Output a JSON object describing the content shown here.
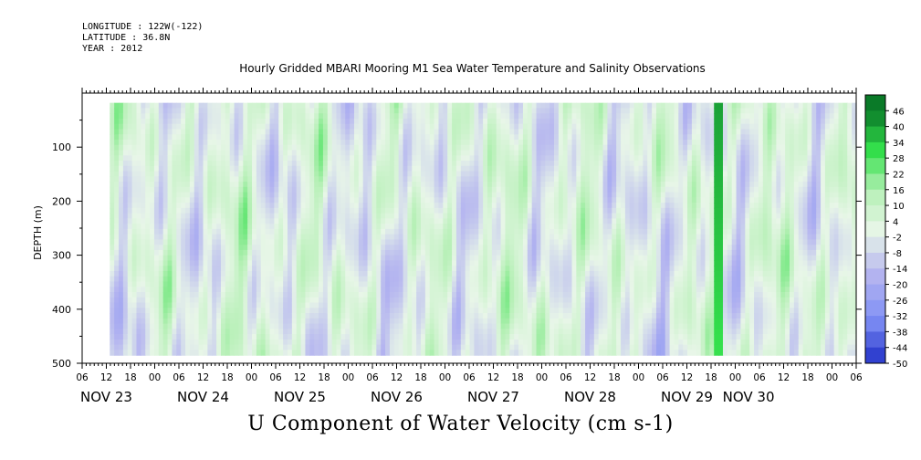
{
  "meta": {
    "longitude": "LONGITUDE : 122W(-122)",
    "latitude": "LATITUDE : 36.8N",
    "year": "YEAR : 2012"
  },
  "chart_data": {
    "type": "heatmap",
    "title": "Hourly Gridded MBARI Mooring M1 Sea Water Temperature and Salinity Observations",
    "variable_label": "U Component of Water Velocity (cm s-1)",
    "ylabel": "DEPTH (m)",
    "xlabel": "",
    "y_axis": {
      "ticks": [
        100,
        200,
        300,
        400,
        500
      ],
      "range": [
        500,
        0
      ],
      "inverted": true
    },
    "x_axis": {
      "hour_ticks": [
        "06",
        "12",
        "18",
        "00",
        "06",
        "12",
        "18",
        "00",
        "06",
        "12",
        "18",
        "00",
        "06",
        "12",
        "18",
        "00",
        "06",
        "12",
        "18",
        "00",
        "06",
        "12",
        "18",
        "00",
        "06",
        "12",
        "18",
        "00",
        "06",
        "12",
        "18",
        "00",
        "06"
      ],
      "day_labels": [
        "NOV 23",
        "NOV 24",
        "NOV 25",
        "NOV 26",
        "NOV 27",
        "NOV 28",
        "NOV 29",
        "NOV 30"
      ],
      "range": [
        "2012-11-23T06:00",
        "2012-11-30T06:00"
      ]
    },
    "colorbar": {
      "ticks": [
        46,
        40,
        34,
        28,
        22,
        16,
        10,
        4,
        -2,
        -8,
        -14,
        -20,
        -26,
        -32,
        -38,
        -44,
        -50
      ],
      "range": [
        -50,
        52
      ],
      "step": 6
    },
    "data_range": {
      "time_start": "2012-11-23T12:00",
      "time_end": "2012-11-30T06:00",
      "depth_min": 18,
      "depth_max": 485
    },
    "colors": {
      "positive_light": "#b6f0b6",
      "positive_mid": "#34e04c",
      "positive_dark": "#0a7a28",
      "negative_light": "#b4b4f0",
      "negative_mid": "#7f8ff5",
      "negative_dark": "#2030c8",
      "zero": "#e8f6e8"
    },
    "grid": false,
    "legend": "right colorbar"
  }
}
